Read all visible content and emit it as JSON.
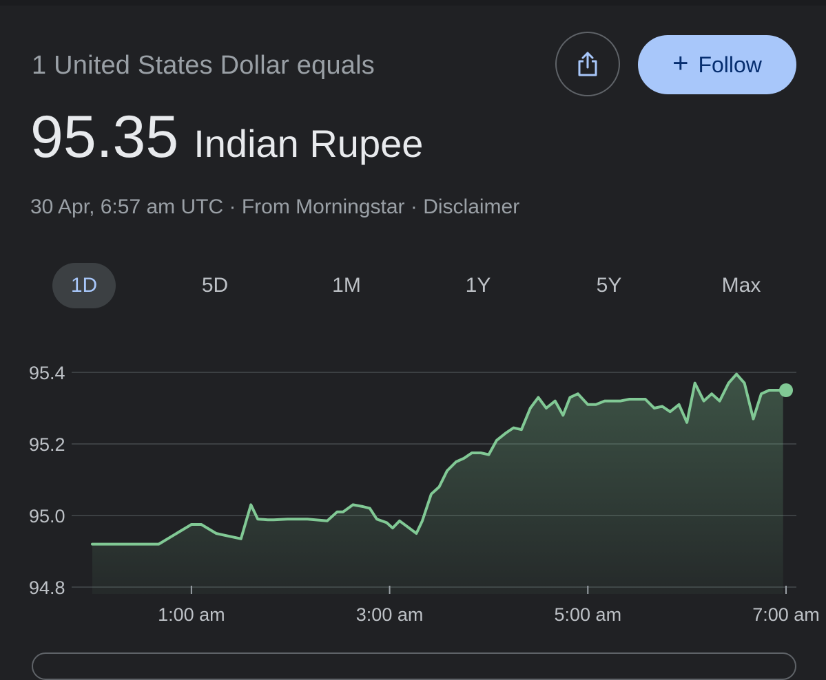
{
  "header": {
    "subtitle": "1 United States Dollar equals",
    "rate_value": "95.35",
    "rate_currency": "Indian Rupee",
    "meta": {
      "timestamp": "30 Apr, 6:57 am UTC",
      "separator": " · ",
      "source": "From Morningstar",
      "disclaimer": "Disclaimer"
    },
    "share_icon": "share-icon",
    "follow_label": "Follow",
    "follow_icon": "+"
  },
  "tabs": [
    {
      "label": "1D",
      "active": true
    },
    {
      "label": "5D",
      "active": false
    },
    {
      "label": "1M",
      "active": false
    },
    {
      "label": "1Y",
      "active": false
    },
    {
      "label": "5Y",
      "active": false
    },
    {
      "label": "Max",
      "active": false
    }
  ],
  "colors": {
    "background": "#202124",
    "line": "#81c995",
    "accent": "#a8c7fa",
    "grid": "#3c4043",
    "muted_text": "#9aa0a6"
  },
  "chart_data": {
    "type": "area",
    "y_ticks": [
      "95.4",
      "95.2",
      "95.0",
      "94.8"
    ],
    "y_tick_values": [
      95.4,
      95.2,
      95.0,
      94.8
    ],
    "x_ticks": [
      "1:00 am",
      "3:00 am",
      "5:00 am",
      "7:00 am"
    ],
    "x_tick_values": [
      1,
      3,
      5,
      7
    ],
    "ylim": [
      94.8,
      95.4
    ],
    "xlim": [
      0,
      7
    ],
    "grid": true,
    "series": [
      {
        "x": [
          0,
          0.67,
          1.0,
          1.1,
          1.25,
          1.33,
          1.5,
          1.6,
          1.67,
          1.77,
          1.83,
          1.97,
          2.07,
          2.17,
          2.37,
          2.47,
          2.53,
          2.63,
          2.73,
          2.8,
          2.87,
          2.97,
          3.03,
          3.1,
          3.27,
          3.33,
          3.42,
          3.5,
          3.58,
          3.67,
          3.75,
          3.83,
          3.92,
          4.0,
          4.08,
          4.17,
          4.25,
          4.33,
          4.42,
          4.5,
          4.58,
          4.67,
          4.75,
          4.82,
          4.9,
          5.0,
          5.08,
          5.17,
          5.25,
          5.33,
          5.42,
          5.5,
          5.58,
          5.67,
          5.75,
          5.83,
          5.92,
          6.0,
          6.08,
          6.17,
          6.25,
          6.33,
          6.42,
          6.5,
          6.58,
          6.67,
          6.75,
          6.83,
          6.92,
          6.97
        ],
        "values": [
          94.92,
          94.92,
          94.975,
          94.975,
          94.95,
          94.945,
          94.935,
          95.03,
          94.99,
          94.988,
          94.988,
          94.99,
          94.99,
          94.99,
          94.985,
          95.01,
          95.01,
          95.03,
          95.025,
          95.02,
          94.99,
          94.98,
          94.965,
          94.985,
          94.95,
          94.985,
          95.06,
          95.08,
          95.125,
          95.15,
          95.16,
          95.175,
          95.175,
          95.17,
          95.21,
          95.23,
          95.245,
          95.24,
          95.3,
          95.33,
          95.3,
          95.32,
          95.28,
          95.33,
          95.34,
          95.31,
          95.31,
          95.32,
          95.32,
          95.32,
          95.325,
          95.325,
          95.325,
          95.3,
          95.305,
          95.29,
          95.31,
          95.26,
          95.37,
          95.32,
          95.34,
          95.32,
          95.37,
          95.395,
          95.37,
          95.27,
          95.34,
          95.35,
          95.35,
          95.35
        ]
      }
    ],
    "current_point": {
      "x": 7.0,
      "y": 95.35
    }
  }
}
